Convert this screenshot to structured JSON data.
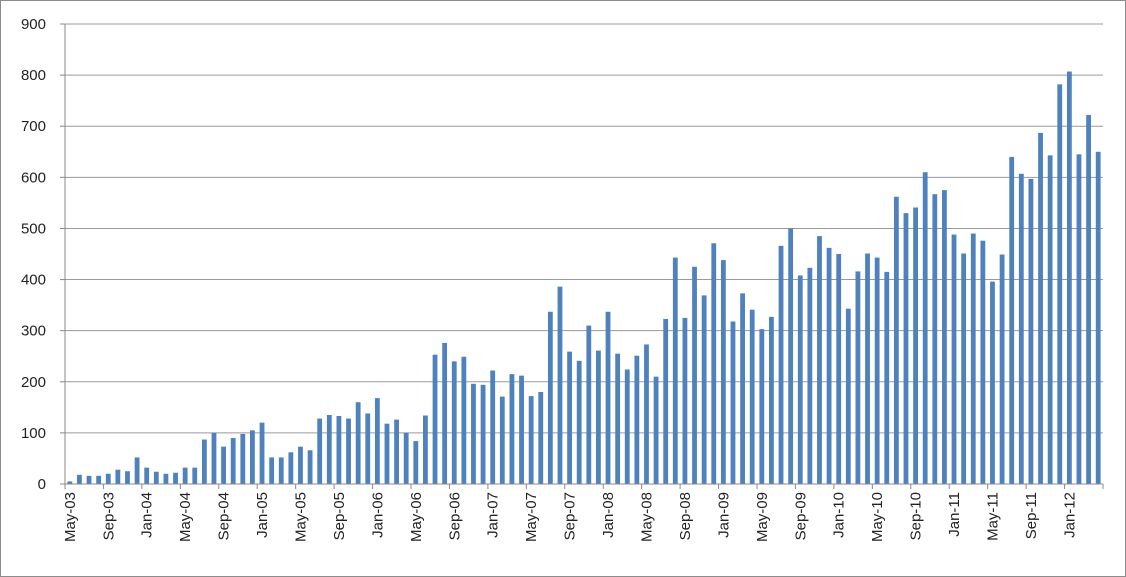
{
  "chart_data": {
    "type": "bar",
    "title": "",
    "xlabel": "",
    "ylabel": "",
    "ylim": [
      0,
      900
    ],
    "yticks": [
      0,
      100,
      200,
      300,
      400,
      500,
      600,
      700,
      800,
      900
    ],
    "grid": true,
    "legend": "none",
    "bar_color": "#4f81bd",
    "categories": [
      "May-03",
      "Jun-03",
      "Jul-03",
      "Aug-03",
      "Sep-03",
      "Oct-03",
      "Nov-03",
      "Dec-03",
      "Jan-04",
      "Feb-04",
      "Mar-04",
      "Apr-04",
      "May-04",
      "Jun-04",
      "Jul-04",
      "Aug-04",
      "Sep-04",
      "Oct-04",
      "Nov-04",
      "Dec-04",
      "Jan-05",
      "Feb-05",
      "Mar-05",
      "Apr-05",
      "May-05",
      "Jun-05",
      "Jul-05",
      "Aug-05",
      "Sep-05",
      "Oct-05",
      "Nov-05",
      "Dec-05",
      "Jan-06",
      "Feb-06",
      "Mar-06",
      "Apr-06",
      "May-06",
      "Jun-06",
      "Jul-06",
      "Aug-06",
      "Sep-06",
      "Oct-06",
      "Nov-06",
      "Dec-06",
      "Jan-07",
      "Feb-07",
      "Mar-07",
      "Apr-07",
      "May-07",
      "Jun-07",
      "Jul-07",
      "Aug-07",
      "Sep-07",
      "Oct-07",
      "Nov-07",
      "Dec-07",
      "Jan-08",
      "Feb-08",
      "Mar-08",
      "Apr-08",
      "May-08",
      "Jun-08",
      "Jul-08",
      "Aug-08",
      "Sep-08",
      "Oct-08",
      "Nov-08",
      "Dec-08",
      "Jan-09",
      "Feb-09",
      "Mar-09",
      "Apr-09",
      "May-09",
      "Jun-09",
      "Jul-09",
      "Aug-09",
      "Sep-09",
      "Oct-09",
      "Nov-09",
      "Dec-09",
      "Jan-10",
      "Feb-10",
      "Mar-10",
      "Apr-10",
      "May-10",
      "Jun-10",
      "Jul-10",
      "Aug-10",
      "Sep-10",
      "Oct-10",
      "Nov-10",
      "Dec-10",
      "Jan-11",
      "Feb-11",
      "Mar-11",
      "Apr-11",
      "May-11",
      "Jun-11",
      "Jul-11",
      "Aug-11",
      "Sep-11",
      "Oct-11",
      "Nov-11",
      "Dec-11",
      "Jan-12",
      "Feb-12",
      "Mar-12",
      "Apr-12"
    ],
    "xtick_labels": [
      "May-03",
      "Sep-03",
      "Jan-04",
      "May-04",
      "Sep-04",
      "Jan-05",
      "May-05",
      "Sep-05",
      "Jan-06",
      "May-06",
      "Sep-06",
      "Jan-07",
      "May-07",
      "Sep-07",
      "Jan-08",
      "May-08",
      "Sep-08",
      "Jan-09",
      "May-09",
      "Sep-09",
      "Jan-10",
      "May-10",
      "Sep-10",
      "Jan-11",
      "May-11",
      "Sep-11",
      "Jan-12"
    ],
    "values": [
      5,
      18,
      16,
      16,
      20,
      28,
      25,
      52,
      32,
      24,
      20,
      22,
      32,
      32,
      87,
      100,
      73,
      90,
      98,
      105,
      120,
      52,
      52,
      62,
      73,
      66,
      128,
      135,
      133,
      128,
      160,
      138,
      168,
      118,
      126,
      100,
      84,
      134,
      253,
      276,
      240,
      249,
      196,
      194,
      222,
      171,
      215,
      212,
      172,
      180,
      337,
      386,
      259,
      241,
      310,
      261,
      337,
      255,
      224,
      251,
      273,
      210,
      323,
      443,
      325,
      425,
      369,
      471,
      438,
      318,
      373,
      341,
      303,
      327,
      466,
      500,
      408,
      423,
      485,
      462,
      450,
      343,
      416,
      451,
      443,
      415,
      562,
      530,
      541,
      610,
      567,
      575,
      488,
      451,
      490,
      476,
      396,
      449,
      640,
      607,
      597,
      687,
      643,
      782,
      807,
      645,
      722,
      650
    ]
  }
}
